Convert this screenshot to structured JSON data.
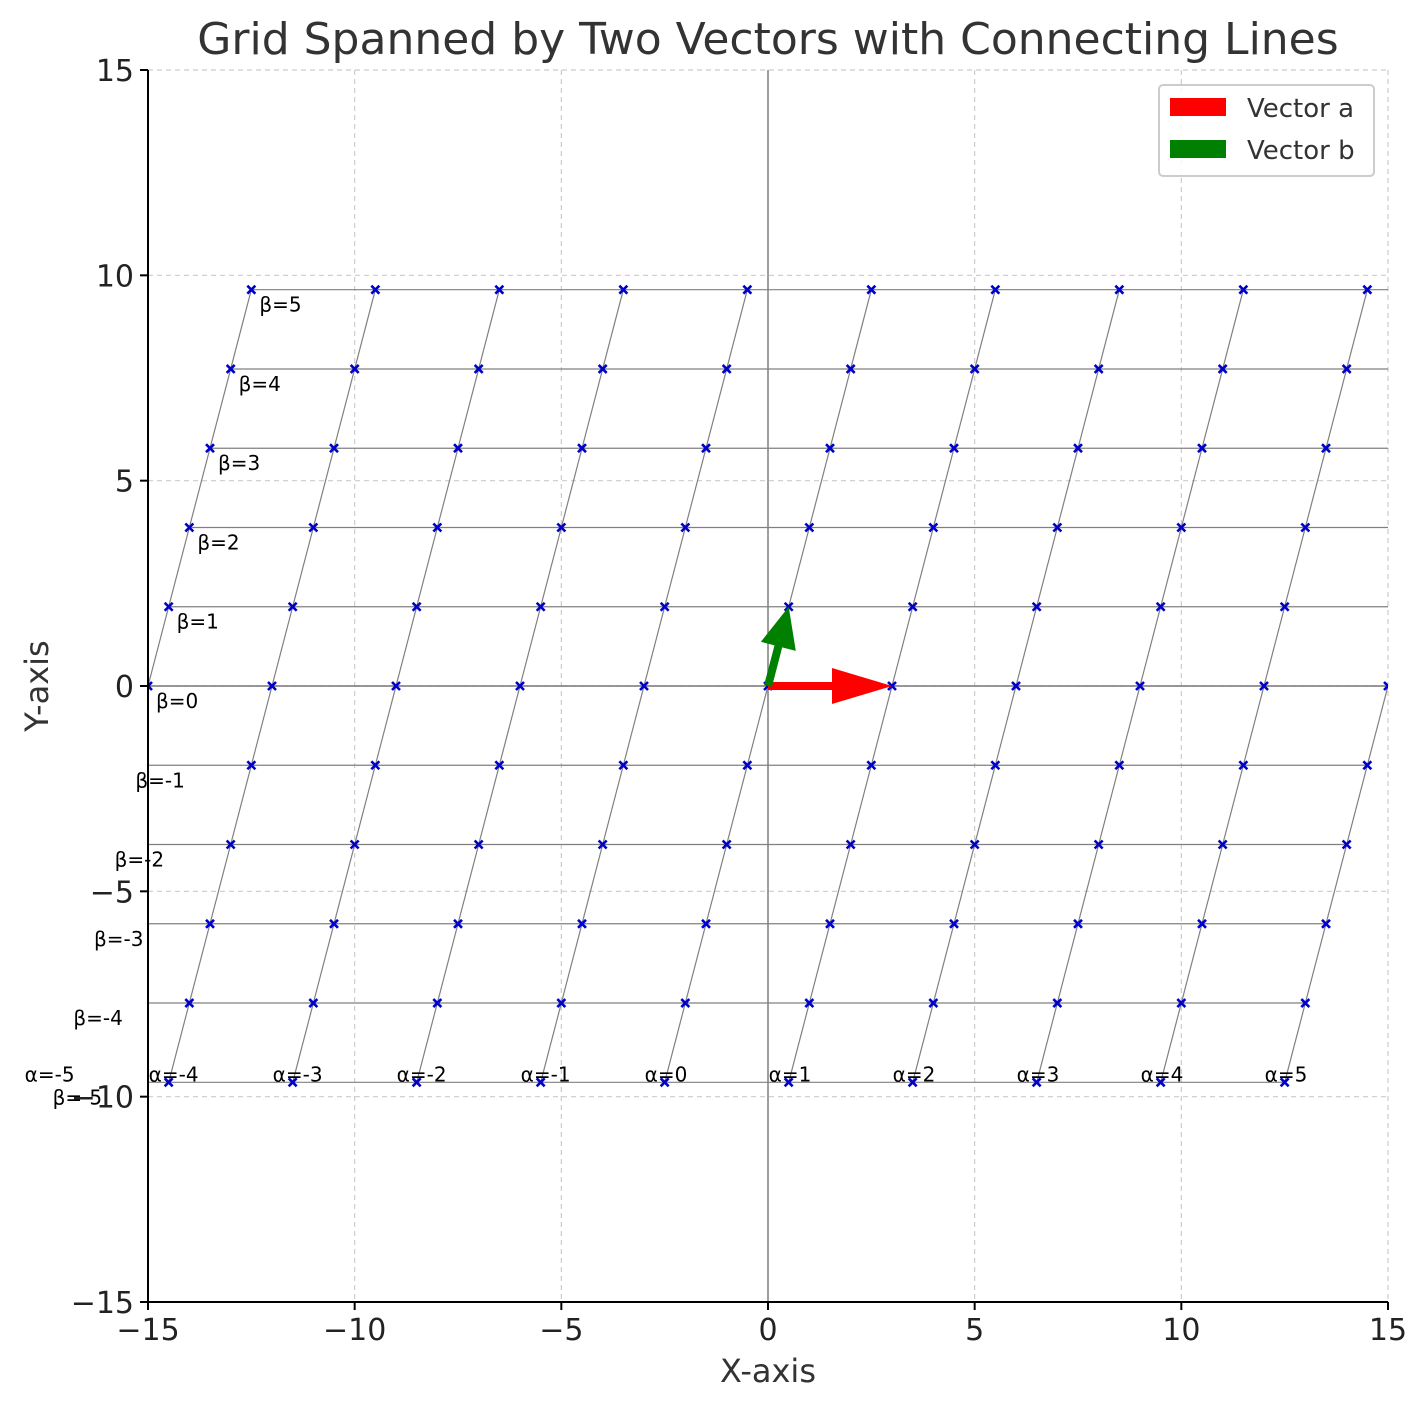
{
  "chart_data": {
    "type": "scatter",
    "title": "Grid Spanned by Two Vectors with Connecting Lines",
    "xlabel": "X-axis",
    "ylabel": "Y-axis",
    "xlim": [
      -15,
      15
    ],
    "ylim": [
      -15,
      15
    ],
    "xticks": [
      -15,
      -10,
      -5,
      0,
      5,
      10,
      15
    ],
    "yticks": [
      -15,
      -10,
      -5,
      0,
      5,
      10,
      15
    ],
    "xtick_labels": [
      "−15",
      "−10",
      "−5",
      "0",
      "5",
      "10",
      "15"
    ],
    "ytick_labels": [
      "−15",
      "−10",
      "−5",
      "0",
      "5",
      "10",
      "15"
    ],
    "grid": true,
    "legend_position": "top-right",
    "vectors": [
      {
        "name": "Vector a",
        "x": 3.0,
        "y": 0.0,
        "color": "#ff0000"
      },
      {
        "name": "Vector b",
        "x": 0.5,
        "y": 1.93,
        "color": "#008000"
      }
    ],
    "alpha_range": [
      -5,
      5
    ],
    "beta_range": [
      -5,
      5
    ],
    "alpha_labels": [
      "α=-5",
      "α=-4",
      "α=-3",
      "α=-2",
      "α=-1",
      "α=0",
      "α=1",
      "α=2",
      "α=3",
      "α=4",
      "α=5"
    ],
    "beta_labels": [
      "β=-5",
      "β=-4",
      "β=-3",
      "β=-2",
      "β=-1",
      "β=0",
      "β=1",
      "β=2",
      "β=3",
      "β=4",
      "β=5"
    ],
    "point_color": "#0000cc",
    "line_color": "#808080"
  }
}
